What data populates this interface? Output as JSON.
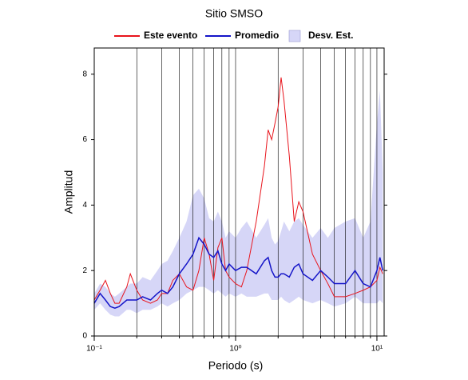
{
  "chart_data": {
    "type": "line",
    "title": "Sitio SMSO",
    "xlabel": "Periodo (s)",
    "ylabel": "Amplitud",
    "xscale": "log",
    "xgrid": true,
    "xlim": [
      0.1,
      11.25
    ],
    "ylim": [
      0,
      8.8
    ],
    "xticks": [
      {
        "value": 0.1,
        "label": "10⁻¹"
      },
      {
        "value": 1,
        "label": "10⁰"
      },
      {
        "value": 10,
        "label": "10¹"
      }
    ],
    "xticks_minor": [
      0.2,
      0.3,
      0.4,
      0.5,
      0.6,
      0.7,
      0.8,
      0.9,
      2,
      3,
      4,
      5,
      6,
      7,
      8,
      9
    ],
    "yticks": [
      0,
      2,
      4,
      6,
      8
    ],
    "x": [
      0.1,
      0.11,
      0.12,
      0.13,
      0.14,
      0.15,
      0.17,
      0.18,
      0.2,
      0.22,
      0.25,
      0.28,
      0.3,
      0.33,
      0.36,
      0.4,
      0.45,
      0.5,
      0.55,
      0.6,
      0.65,
      0.7,
      0.75,
      0.8,
      0.85,
      0.9,
      1.0,
      1.1,
      1.2,
      1.4,
      1.6,
      1.7,
      1.8,
      1.9,
      2.0,
      2.1,
      2.2,
      2.4,
      2.6,
      2.8,
      3.0,
      3.5,
      4,
      4.5,
      5,
      6,
      7,
      8,
      9,
      10,
      10.5,
      11
    ],
    "band": {
      "name": "Desv. Est.",
      "color": "#d6d6f7",
      "upper": [
        1.3,
        1.6,
        1.5,
        1.3,
        1.2,
        1.3,
        1.5,
        1.6,
        1.6,
        1.8,
        1.7,
        2.0,
        2.2,
        2.3,
        2.6,
        3.0,
        3.5,
        4.3,
        4.5,
        4.2,
        3.6,
        3.5,
        3.8,
        3.5,
        3.0,
        3.2,
        3.0,
        3.3,
        3.5,
        3.0,
        3.4,
        3.6,
        3.0,
        2.8,
        2.9,
        3.2,
        3.5,
        3.2,
        3.5,
        3.6,
        3.4,
        3.0,
        3.3,
        3.0,
        3.3,
        3.5,
        3.6,
        3.0,
        3.5,
        6.5,
        7.5,
        5.0
      ],
      "lower": [
        0.8,
        1.0,
        0.8,
        0.65,
        0.6,
        0.6,
        0.8,
        0.8,
        0.7,
        0.8,
        0.8,
        0.9,
        1.0,
        0.9,
        1.0,
        1.1,
        1.3,
        1.4,
        1.5,
        1.5,
        1.4,
        1.3,
        1.4,
        1.3,
        1.2,
        1.3,
        1.2,
        1.3,
        1.2,
        1.2,
        1.3,
        1.3,
        1.1,
        1.1,
        1.1,
        1.2,
        1.1,
        1.0,
        1.1,
        1.2,
        1.1,
        1.0,
        1.1,
        1.0,
        0.9,
        1.0,
        1.2,
        1.0,
        1.0,
        1.0,
        1.1,
        1.0
      ]
    },
    "series": [
      {
        "name": "Este evento",
        "color": "#e8141c",
        "values": [
          1.1,
          1.4,
          1.7,
          1.3,
          1.0,
          1.0,
          1.5,
          1.9,
          1.4,
          1.1,
          1.0,
          1.1,
          1.3,
          1.3,
          1.7,
          1.9,
          1.5,
          1.4,
          2.0,
          3.0,
          2.5,
          1.7,
          2.7,
          3.0,
          2.0,
          1.8,
          1.6,
          1.5,
          2.0,
          3.5,
          5.2,
          6.3,
          6.0,
          6.5,
          7.0,
          7.9,
          7.2,
          5.5,
          3.5,
          4.1,
          3.8,
          2.5,
          2.0,
          1.6,
          1.2,
          1.2,
          1.3,
          1.4,
          1.5,
          1.7,
          2.1,
          1.9
        ]
      },
      {
        "name": "Promedio",
        "color": "#1414c8",
        "values": [
          1.0,
          1.3,
          1.1,
          0.9,
          0.85,
          0.9,
          1.1,
          1.1,
          1.1,
          1.2,
          1.1,
          1.3,
          1.4,
          1.3,
          1.5,
          1.9,
          2.2,
          2.5,
          3.0,
          2.8,
          2.5,
          2.4,
          2.6,
          2.2,
          2.0,
          2.2,
          2.0,
          2.1,
          2.1,
          1.9,
          2.3,
          2.4,
          2.0,
          1.8,
          1.8,
          1.9,
          1.9,
          1.8,
          2.1,
          2.2,
          1.9,
          1.7,
          2.0,
          1.8,
          1.6,
          1.6,
          2.0,
          1.6,
          1.5,
          2.0,
          2.4,
          2.0
        ]
      }
    ]
  }
}
